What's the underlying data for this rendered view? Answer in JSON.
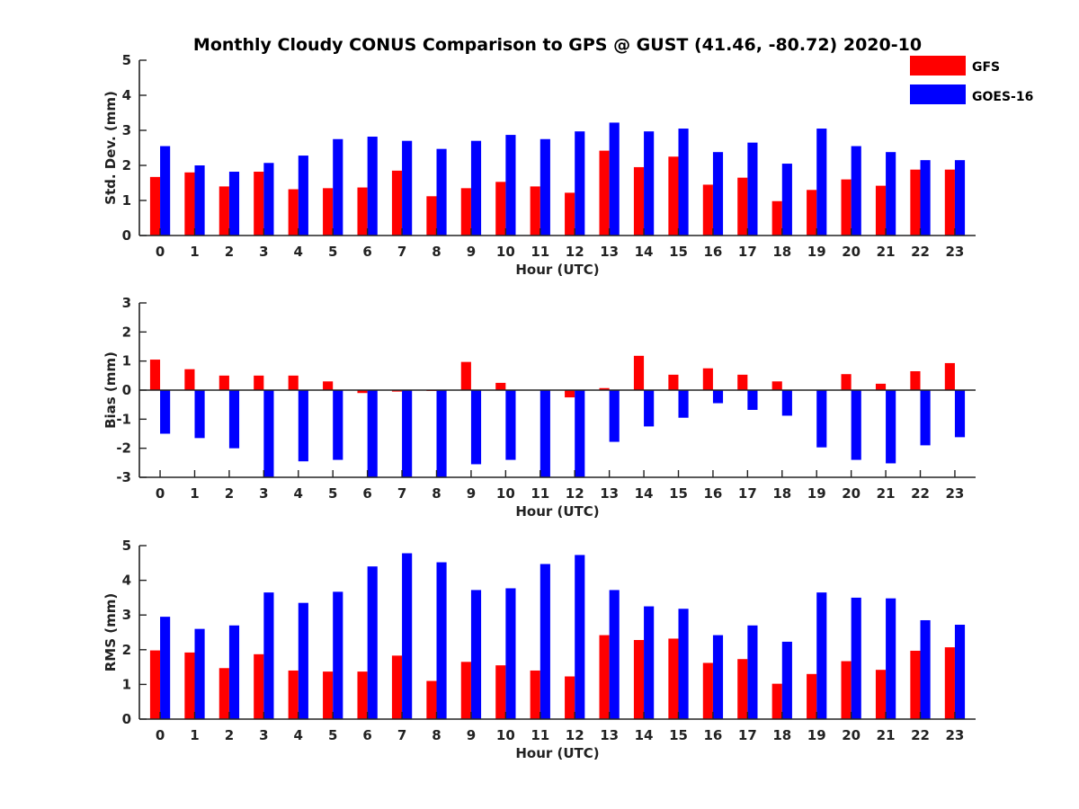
{
  "chart_data": {
    "title": "Monthly Cloudy CONUS Comparison to GPS @ GUST (41.46, -80.72) 2020-10",
    "legend": {
      "placement": "top-right",
      "entries": [
        {
          "name": "GFS",
          "color": "#ff0000"
        },
        {
          "name": "GOES-16",
          "color": "#0000ff"
        }
      ]
    },
    "panels": [
      {
        "type": "bar",
        "xlabel": "Hour (UTC)",
        "ylabel": "Std. Dev. (mm)",
        "ylim": [
          0,
          5
        ],
        "yticks": [
          "0",
          "1",
          "2",
          "3",
          "4",
          "5"
        ],
        "categories": [
          "0",
          "1",
          "2",
          "3",
          "4",
          "5",
          "6",
          "7",
          "8",
          "9",
          "10",
          "11",
          "12",
          "13",
          "14",
          "15",
          "16",
          "17",
          "18",
          "19",
          "20",
          "21",
          "22",
          "23"
        ],
        "series": [
          {
            "name": "GFS",
            "color": "#ff0000",
            "values": [
              1.67,
              1.8,
              1.4,
              1.82,
              1.32,
              1.35,
              1.37,
              1.85,
              1.12,
              1.35,
              1.53,
              1.4,
              1.22,
              2.42,
              1.95,
              2.25,
              1.45,
              1.65,
              0.98,
              1.3,
              1.6,
              1.42,
              1.88,
              1.88
            ]
          },
          {
            "name": "GOES-16",
            "color": "#0000ff",
            "values": [
              2.55,
              2.0,
              1.82,
              2.07,
              2.28,
              2.75,
              2.82,
              2.7,
              2.47,
              2.7,
              2.87,
              2.75,
              2.97,
              3.22,
              2.97,
              3.05,
              2.38,
              2.65,
              2.05,
              3.05,
              2.55,
              2.38,
              2.15,
              2.15
            ]
          }
        ]
      },
      {
        "type": "bar",
        "xlabel": "Hour (UTC)",
        "ylabel": "Bias (mm)",
        "ylim": [
          -3,
          3
        ],
        "yticks": [
          "-3",
          "-2",
          "-1",
          "0",
          "1",
          "2",
          "3"
        ],
        "categories": [
          "0",
          "1",
          "2",
          "3",
          "4",
          "5",
          "6",
          "7",
          "8",
          "9",
          "10",
          "11",
          "12",
          "13",
          "14",
          "15",
          "16",
          "17",
          "18",
          "19",
          "20",
          "21",
          "22",
          "23"
        ],
        "series": [
          {
            "name": "GFS",
            "color": "#ff0000",
            "values": [
              1.05,
              0.72,
              0.5,
              0.5,
              0.5,
              0.3,
              -0.1,
              -0.05,
              -0.03,
              0.97,
              0.25,
              0.0,
              -0.25,
              0.07,
              1.18,
              0.53,
              0.75,
              0.53,
              0.3,
              0.0,
              0.55,
              0.22,
              0.65,
              0.93
            ]
          },
          {
            "name": "GOES-16",
            "color": "#0000ff",
            "values": [
              -1.5,
              -1.65,
              -2.0,
              -3.0,
              -2.45,
              -2.4,
              -3.0,
              -3.0,
              -3.0,
              -2.55,
              -2.4,
              -3.0,
              -3.0,
              -1.78,
              -1.25,
              -0.95,
              -0.45,
              -0.68,
              -0.88,
              -1.97,
              -2.4,
              -2.52,
              -1.9,
              -1.62
            ]
          }
        ]
      },
      {
        "type": "bar",
        "xlabel": "Hour (UTC)",
        "ylabel": "RMS (mm)",
        "ylim": [
          0,
          5
        ],
        "yticks": [
          "0",
          "1",
          "2",
          "3",
          "4",
          "5"
        ],
        "categories": [
          "0",
          "1",
          "2",
          "3",
          "4",
          "5",
          "6",
          "7",
          "8",
          "9",
          "10",
          "11",
          "12",
          "13",
          "14",
          "15",
          "16",
          "17",
          "18",
          "19",
          "20",
          "21",
          "22",
          "23"
        ],
        "series": [
          {
            "name": "GFS",
            "color": "#ff0000",
            "values": [
              1.98,
              1.92,
              1.47,
              1.87,
              1.4,
              1.37,
              1.37,
              1.83,
              1.1,
              1.65,
              1.55,
              1.4,
              1.23,
              2.42,
              2.28,
              2.32,
              1.62,
              1.73,
              1.02,
              1.3,
              1.67,
              1.42,
              1.97,
              2.07
            ]
          },
          {
            "name": "GOES-16",
            "color": "#0000ff",
            "values": [
              2.95,
              2.6,
              2.7,
              3.65,
              3.35,
              3.67,
              4.4,
              4.78,
              4.52,
              3.72,
              3.77,
              4.47,
              4.73,
              3.72,
              3.25,
              3.18,
              2.42,
              2.7,
              2.23,
              3.65,
              3.5,
              3.48,
              2.85,
              2.72
            ]
          }
        ]
      }
    ]
  }
}
